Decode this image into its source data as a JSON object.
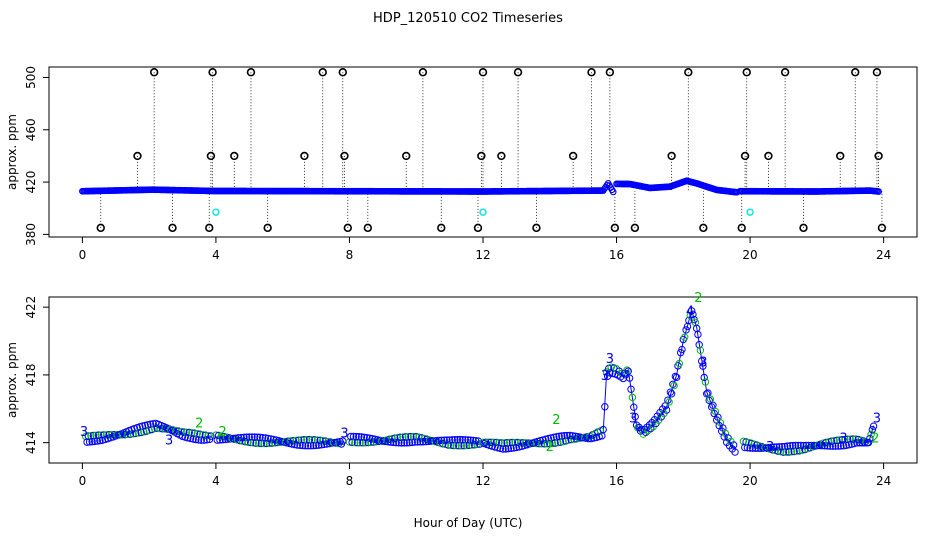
{
  "title": "HDP_120510  CO2 Timeseries",
  "xlabel": "Hour of Day (UTC)",
  "colors": {
    "series_main": "#0000ff",
    "series_outlier": "#000000",
    "series_cal": "#00e5e5",
    "label_2": "#00bb00",
    "label_3": "#0000ee"
  },
  "chart_data": [
    {
      "type": "scatter",
      "title": "",
      "xlabel": "",
      "ylabel": "approx. ppm",
      "xlim": [
        -1,
        25
      ],
      "ylim": [
        378,
        508
      ],
      "xticks": [
        0,
        4,
        8,
        12,
        16,
        20,
        24
      ],
      "yticks": [
        380,
        420,
        460,
        500
      ],
      "grid": false,
      "baseline_segments": [
        [
          [
            0.0,
            413.0
          ],
          [
            2.1,
            414.2
          ],
          [
            3.9,
            413.2
          ],
          [
            7.8,
            413.0
          ],
          [
            12.0,
            412.8
          ],
          [
            15.6,
            413.5
          ],
          [
            15.75,
            419.0
          ],
          [
            15.9,
            412.5
          ]
        ],
        [
          [
            16.0,
            418.6
          ],
          [
            16.4,
            418.5
          ],
          [
            17.0,
            415.5
          ],
          [
            17.6,
            416.5
          ],
          [
            18.1,
            421.0
          ],
          [
            18.4,
            419.0
          ],
          [
            19.0,
            414.0
          ],
          [
            19.6,
            412.2
          ]
        ],
        [
          [
            19.7,
            413.0
          ],
          [
            22.0,
            412.8
          ],
          [
            23.6,
            413.5
          ],
          [
            23.85,
            412.8
          ]
        ]
      ],
      "outliers_high": [
        2.15,
        3.9,
        5.05,
        7.2,
        7.8,
        10.2,
        12.0,
        13.05,
        15.25,
        15.8,
        18.15,
        19.9,
        21.05,
        23.15,
        23.8
      ],
      "outliers_mid": [
        1.65,
        3.85,
        4.55,
        6.65,
        7.85,
        9.7,
        11.95,
        12.55,
        14.7,
        17.65,
        19.85,
        20.55,
        22.7,
        23.85
      ],
      "outliers_low": [
        0.55,
        2.7,
        3.8,
        5.55,
        7.95,
        8.55,
        10.75,
        11.85,
        13.6,
        15.95,
        16.55,
        18.6,
        19.75,
        21.6,
        23.95
      ],
      "outlier_values": {
        "high": 504,
        "mid": 440,
        "low": 385
      },
      "cal_points": [
        [
          4.0,
          397
        ],
        [
          12.0,
          397
        ],
        [
          20.0,
          397
        ]
      ]
    },
    {
      "type": "line",
      "title": "",
      "xlabel": "Hour of Day (UTC)",
      "ylabel": "approx. ppm",
      "xlim": [
        -1,
        25
      ],
      "ylim": [
        412.8,
        422.6
      ],
      "xticks": [
        0,
        4,
        8,
        12,
        16,
        20,
        24
      ],
      "yticks": [
        414,
        418,
        422
      ],
      "grid": false,
      "segments": [
        [
          [
            0.1,
            414.2
          ],
          [
            0.6,
            414.3
          ],
          [
            1.2,
            414.5
          ],
          [
            1.8,
            414.8
          ],
          [
            2.2,
            415.0
          ],
          [
            2.6,
            414.8
          ],
          [
            3.0,
            414.5
          ],
          [
            3.6,
            414.3
          ],
          [
            3.85,
            414.3
          ]
        ],
        [
          [
            4.0,
            414.3
          ],
          [
            4.8,
            414.2
          ],
          [
            5.6,
            414.1
          ],
          [
            6.4,
            414.0
          ],
          [
            7.2,
            414.0
          ],
          [
            7.8,
            414.0
          ]
        ],
        [
          [
            8.0,
            414.2
          ],
          [
            9.0,
            414.1
          ],
          [
            10.0,
            414.2
          ],
          [
            11.0,
            414.0
          ],
          [
            11.9,
            414.0
          ]
        ],
        [
          [
            12.0,
            414.0
          ],
          [
            12.6,
            413.8
          ],
          [
            13.2,
            413.9
          ],
          [
            14.0,
            414.1
          ],
          [
            14.6,
            414.3
          ],
          [
            15.2,
            414.3
          ],
          [
            15.6,
            414.6
          ],
          [
            15.7,
            418.0
          ],
          [
            15.8,
            418.3
          ],
          [
            16.0,
            418.2
          ],
          [
            16.2,
            417.9
          ],
          [
            16.35,
            418.3
          ],
          [
            16.6,
            415.0
          ],
          [
            16.8,
            414.6
          ],
          [
            17.1,
            415.1
          ],
          [
            17.5,
            416.1
          ],
          [
            17.8,
            418.0
          ],
          [
            18.0,
            420.0
          ],
          [
            18.25,
            421.8
          ],
          [
            18.4,
            420.8
          ],
          [
            18.7,
            417.0
          ],
          [
            19.0,
            415.5
          ],
          [
            19.3,
            414.2
          ],
          [
            19.55,
            413.6
          ]
        ],
        [
          [
            19.8,
            413.9
          ],
          [
            20.4,
            413.7
          ],
          [
            21.0,
            413.6
          ],
          [
            21.6,
            413.7
          ],
          [
            22.2,
            413.9
          ],
          [
            22.8,
            414.0
          ],
          [
            23.2,
            414.1
          ],
          [
            23.55,
            414.0
          ],
          [
            23.7,
            415.0
          ]
        ]
      ],
      "label_points": [
        {
          "x": 0.05,
          "y": 414.4,
          "label": "3"
        },
        {
          "x": 2.6,
          "y": 413.9,
          "label": "3"
        },
        {
          "x": 3.5,
          "y": 414.9,
          "label": "2"
        },
        {
          "x": 4.2,
          "y": 414.4,
          "label": "2"
        },
        {
          "x": 7.85,
          "y": 414.3,
          "label": "3"
        },
        {
          "x": 14.2,
          "y": 415.1,
          "label": "2"
        },
        {
          "x": 14.0,
          "y": 413.5,
          "label": "2"
        },
        {
          "x": 15.65,
          "y": 417.7,
          "label": "3"
        },
        {
          "x": 15.8,
          "y": 418.7,
          "label": "3"
        },
        {
          "x": 16.5,
          "y": 415.2,
          "label": "3"
        },
        {
          "x": 18.45,
          "y": 422.3,
          "label": "2"
        },
        {
          "x": 18.2,
          "y": 421.5,
          "label": "4"
        },
        {
          "x": 18.6,
          "y": 418.5,
          "label": "3"
        },
        {
          "x": 20.6,
          "y": 413.5,
          "label": "3"
        },
        {
          "x": 22.8,
          "y": 414.0,
          "label": "3"
        },
        {
          "x": 23.75,
          "y": 414.0,
          "label": "2"
        },
        {
          "x": 23.8,
          "y": 415.2,
          "label": "3"
        }
      ]
    }
  ]
}
